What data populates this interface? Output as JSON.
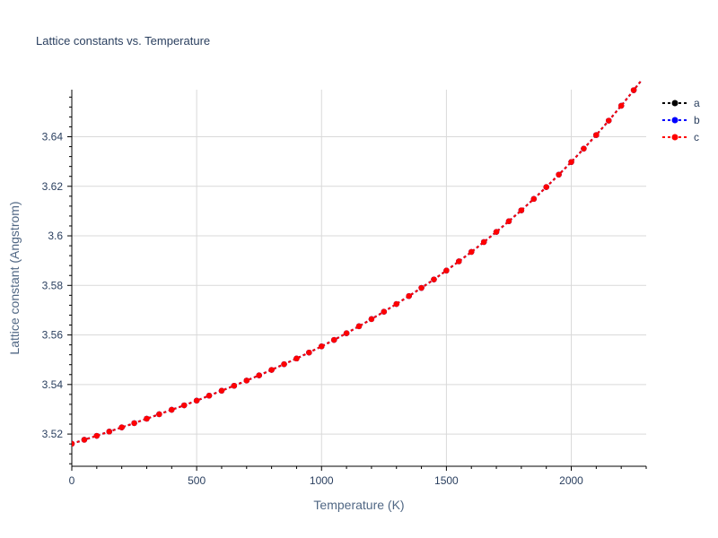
{
  "chart_data": {
    "type": "line",
    "title": "Lattice constants vs. Temperature",
    "xlabel": "Temperature (K)",
    "ylabel": "Lattice constant (Angstrom)",
    "xlim": [
      0,
      2300
    ],
    "ylim": [
      3.507,
      3.659
    ],
    "xticks": [
      0,
      500,
      1000,
      1500,
      2000
    ],
    "xtick_labels": [
      "0",
      "500",
      "1000",
      "1500",
      "2000"
    ],
    "yticks": [
      3.52,
      3.54,
      3.56,
      3.58,
      3.6,
      3.62,
      3.64
    ],
    "ytick_labels": [
      "3.52",
      "3.54",
      "3.56",
      "3.58",
      "3.6",
      "3.62",
      "3.64"
    ],
    "grid": true,
    "legend_position": "top-right",
    "x": [
      0,
      50,
      100,
      150,
      200,
      250,
      300,
      350,
      400,
      450,
      500,
      550,
      600,
      650,
      700,
      750,
      800,
      850,
      900,
      950,
      1000,
      1050,
      1100,
      1150,
      1200,
      1250,
      1300,
      1350,
      1400,
      1450,
      1500,
      1550,
      1600,
      1650,
      1700,
      1750,
      1800,
      1850,
      1900,
      1950,
      2000,
      2050,
      2100,
      2150,
      2200,
      2250,
      2300
    ],
    "series": [
      {
        "name": "a",
        "color": "#000000",
        "values": [
          3.5161,
          3.5177,
          3.5193,
          3.521,
          3.5227,
          3.5244,
          3.5262,
          3.528,
          3.5298,
          3.5316,
          3.5335,
          3.5355,
          3.5375,
          3.5395,
          3.5416,
          3.5437,
          3.5459,
          3.5482,
          3.5505,
          3.5529,
          3.5554,
          3.558,
          3.5607,
          3.5635,
          3.5664,
          3.5694,
          3.5725,
          3.5757,
          3.579,
          3.5824,
          3.586,
          3.5897,
          3.5935,
          3.5975,
          3.6016,
          3.6059,
          3.6103,
          3.6149,
          3.6197,
          3.6247,
          3.6298,
          3.6352,
          3.6407,
          3.6465,
          3.6525,
          3.6588,
          3.6652
        ]
      },
      {
        "name": "b",
        "color": "#0000ff",
        "values": [
          3.5161,
          3.5177,
          3.5193,
          3.521,
          3.5227,
          3.5244,
          3.5262,
          3.528,
          3.5298,
          3.5316,
          3.5335,
          3.5355,
          3.5375,
          3.5395,
          3.5416,
          3.5437,
          3.5459,
          3.5482,
          3.5505,
          3.5529,
          3.5554,
          3.558,
          3.5607,
          3.5635,
          3.5664,
          3.5694,
          3.5725,
          3.5757,
          3.579,
          3.5824,
          3.586,
          3.5897,
          3.5935,
          3.5975,
          3.6016,
          3.6059,
          3.6103,
          3.6149,
          3.6197,
          3.6247,
          3.6298,
          3.6352,
          3.6407,
          3.6465,
          3.6525,
          3.6588,
          3.6652
        ]
      },
      {
        "name": "c",
        "color": "#ff0000",
        "values": [
          3.5161,
          3.5177,
          3.5193,
          3.521,
          3.5227,
          3.5244,
          3.5262,
          3.528,
          3.5298,
          3.5316,
          3.5335,
          3.5355,
          3.5375,
          3.5395,
          3.5416,
          3.5437,
          3.5459,
          3.5482,
          3.5505,
          3.5529,
          3.5554,
          3.558,
          3.5607,
          3.5635,
          3.5664,
          3.5694,
          3.5725,
          3.5757,
          3.579,
          3.5824,
          3.586,
          3.5897,
          3.5935,
          3.5975,
          3.6016,
          3.6059,
          3.6103,
          3.6149,
          3.6197,
          3.6247,
          3.6298,
          3.6352,
          3.6407,
          3.6465,
          3.6525,
          3.6588,
          3.6652
        ]
      }
    ]
  }
}
